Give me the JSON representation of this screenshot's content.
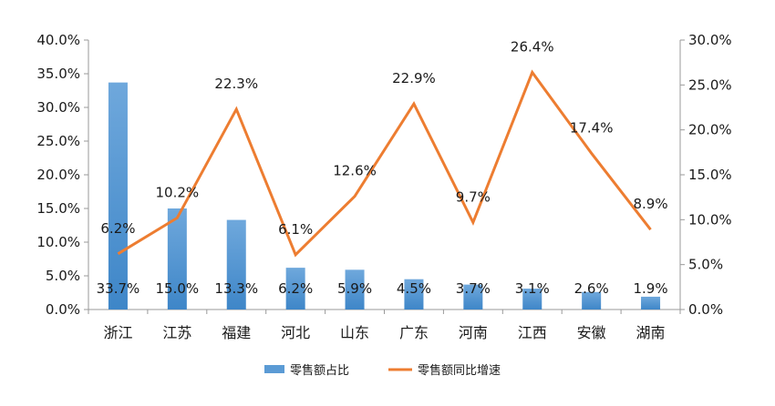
{
  "chart_data": {
    "type": "bar+line",
    "categories": [
      "浙江",
      "江苏",
      "福建",
      "河北",
      "山东",
      "广东",
      "河南",
      "江西",
      "安徽",
      "湖南"
    ],
    "series": [
      {
        "name": "零售额占比",
        "type": "bar",
        "axis": "left",
        "color": "#5B9BD5",
        "values": [
          33.7,
          15.0,
          13.3,
          6.2,
          5.9,
          4.5,
          3.7,
          3.1,
          2.6,
          1.9
        ],
        "labels": [
          "33.7%",
          "15.0%",
          "13.3%",
          "6.2%",
          "5.9%",
          "4.5%",
          "3.7%",
          "3.1%",
          "2.6%",
          "1.9%"
        ]
      },
      {
        "name": "零售额同比增速",
        "type": "line",
        "axis": "right",
        "color": "#ED7D31",
        "values": [
          6.2,
          10.2,
          22.3,
          6.1,
          12.6,
          22.9,
          9.7,
          26.4,
          17.4,
          8.9
        ],
        "labels": [
          "6.2%",
          "10.2%",
          "22.3%",
          "6.1%",
          "12.6%",
          "22.9%",
          "9.7%",
          "26.4%",
          "17.4%",
          "8.9%"
        ]
      }
    ],
    "y_left": {
      "min": 0,
      "max": 40,
      "ticks": [
        0,
        5,
        10,
        15,
        20,
        25,
        30,
        35,
        40
      ],
      "tick_labels": [
        "0.0%",
        "5.0%",
        "10.0%",
        "15.0%",
        "20.0%",
        "25.0%",
        "30.0%",
        "35.0%",
        "40.0%"
      ]
    },
    "y_right": {
      "min": 0,
      "max": 30,
      "ticks": [
        0,
        5,
        10,
        15,
        20,
        25,
        30
      ],
      "tick_labels": [
        "0.0%",
        "5.0%",
        "10.0%",
        "15.0%",
        "20.0%",
        "25.0%",
        "30.0%"
      ]
    },
    "grid": false,
    "legend_position": "bottom-center"
  }
}
